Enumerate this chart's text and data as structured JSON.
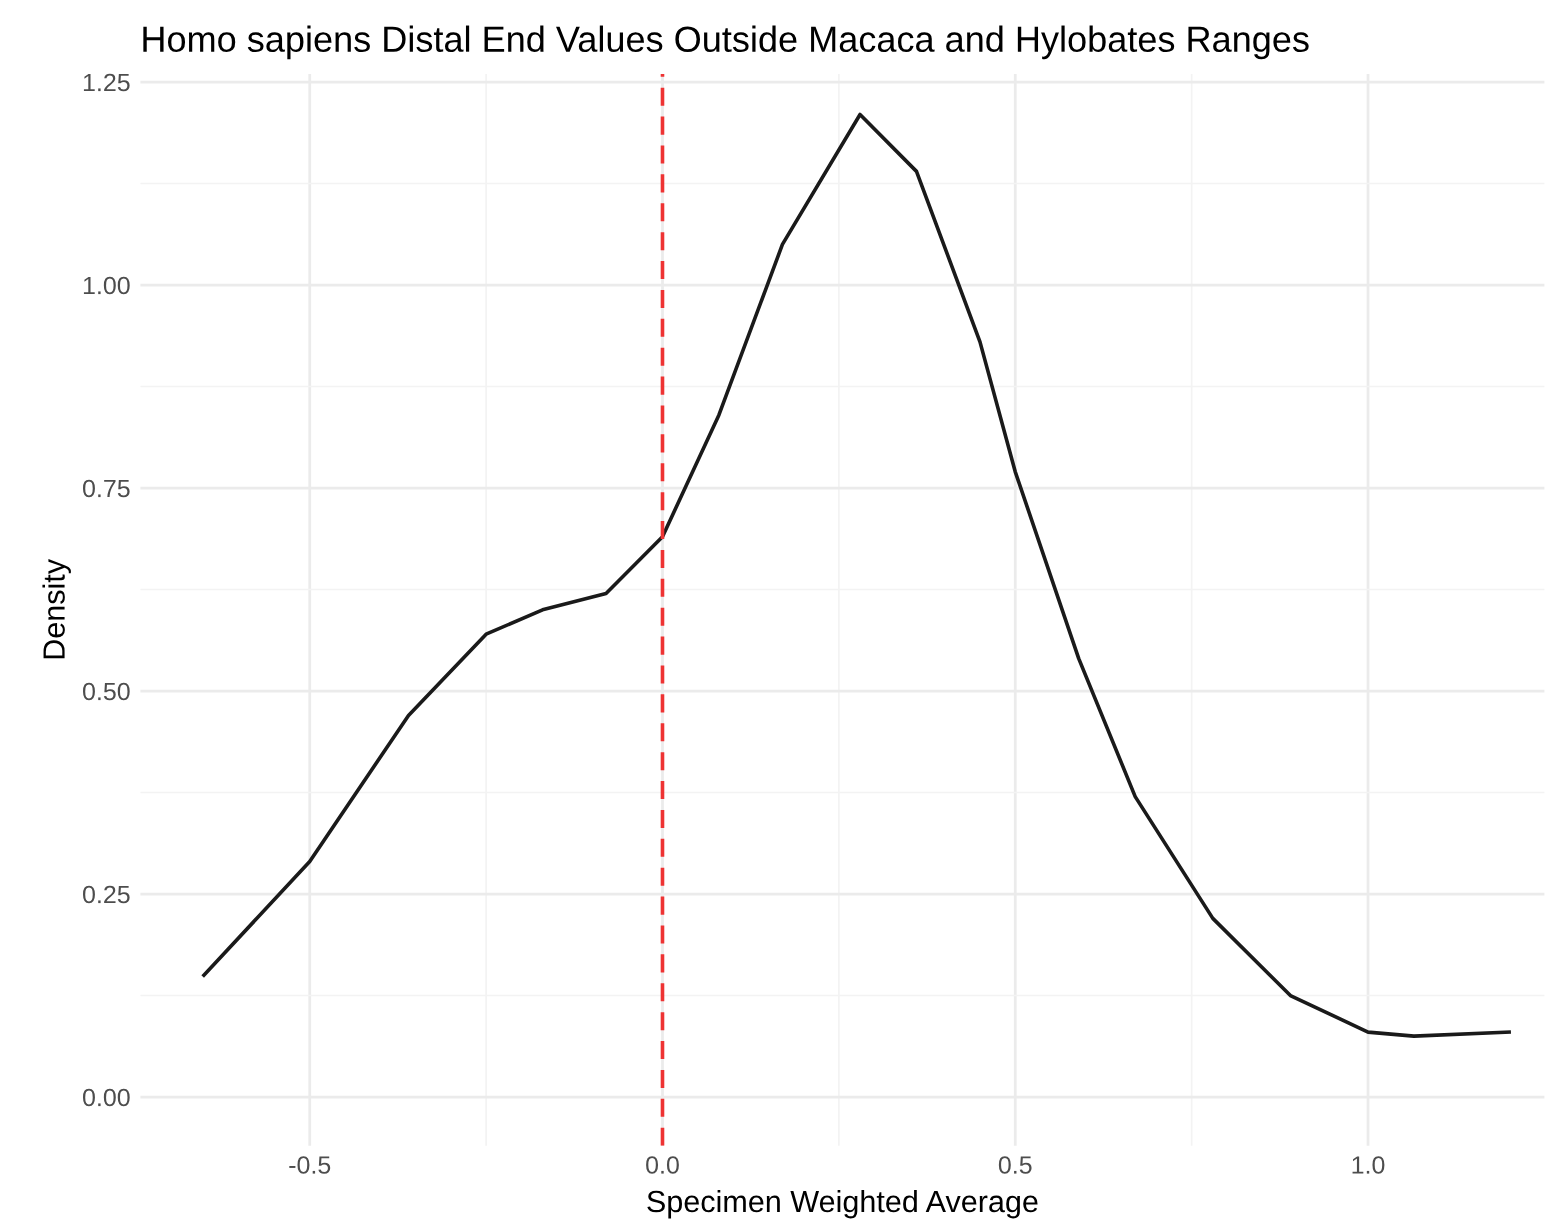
{
  "chart_data": {
    "type": "line",
    "title": "Homo sapiens Distal End Values Outside Macaca and Hylobates Ranges",
    "xlabel": "Specimen Weighted Average",
    "ylabel": "Density",
    "x": [
      -0.65,
      -0.5,
      -0.36,
      -0.25,
      -0.17,
      -0.08,
      0.0,
      0.08,
      0.17,
      0.28,
      0.36,
      0.45,
      0.5,
      0.59,
      0.67,
      0.78,
      0.89,
      1.0,
      1.065,
      1.2
    ],
    "series": [
      {
        "color": "#1a1a1a",
        "values": [
          0.15,
          0.29,
          0.47,
          0.57,
          0.6,
          0.62,
          0.69,
          0.84,
          1.05,
          1.21,
          1.14,
          0.93,
          0.77,
          0.54,
          0.37,
          0.22,
          0.125,
          0.08,
          0.075,
          0.08
        ]
      }
    ],
    "xlim": [
      -0.74,
      1.25
    ],
    "ylim": [
      -0.06,
      1.26
    ],
    "xticks": [
      -0.5,
      {
        "value": 0.0,
        "label": "0.0"
      },
      0.5,
      {
        "value": 1.0,
        "label": "1.0"
      }
    ],
    "yticks": [
      {
        "value": 0.0,
        "label": "0.00"
      },
      0.25,
      {
        "value": 0.5,
        "label": "0.50"
      },
      0.75,
      {
        "value": 1.0,
        "label": "1.00"
      },
      1.25
    ],
    "ref_lines": [
      {
        "axis": "x",
        "value": 0.0,
        "color": "#ee3333",
        "line_style": "dashed"
      }
    ],
    "grid": true,
    "legend": false
  }
}
